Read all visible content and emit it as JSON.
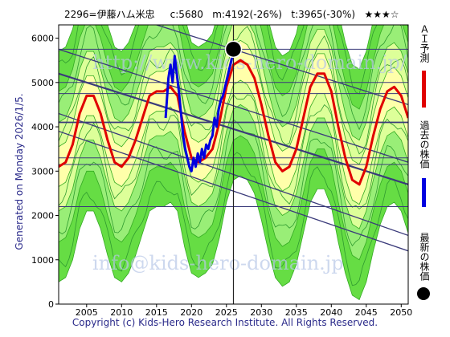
{
  "header": {
    "title": "2296=伊藤ハム米忠     c:5680   m:4192(-26%)   t:3965(-30%)   ★★★☆"
  },
  "side_text": "Generated on Monday 2026/1/5.",
  "footer": {
    "copyright": "Copyright (c) Kids-Hero Research Institute. All Rights Reserved."
  },
  "legend": [
    {
      "label": "ＡＩ予測",
      "color": "#e00000",
      "type": "bar"
    },
    {
      "label": "過去の株価",
      "color": "#0000e0",
      "type": "bar"
    },
    {
      "label": "最新の株価",
      "color": "#000000",
      "type": "dot"
    }
  ],
  "watermarks": [
    "http://www.kids-hero-domain.jp/",
    "info@kids-hero-domain.jp"
  ],
  "chart_data": {
    "type": "line",
    "xlim": [
      2001,
      2051
    ],
    "ylim": [
      0,
      6300
    ],
    "x_ticks": [
      2005,
      2010,
      2015,
      2020,
      2025,
      2030,
      2035,
      2040,
      2045,
      2050
    ],
    "y_ticks": [
      0,
      1000,
      2000,
      3000,
      4000,
      5000,
      6000
    ],
    "latest_point": {
      "x": 2026.0,
      "y": 5750
    },
    "series": [
      {
        "name": "過去の株価",
        "color": "#0000e0",
        "x": [
          2016.3,
          2016.7,
          2017.0,
          2017.3,
          2017.6,
          2017.9,
          2018.2,
          2018.5,
          2018.8,
          2019.1,
          2019.4,
          2019.7,
          2020.0,
          2020.3,
          2020.6,
          2020.9,
          2021.2,
          2021.5,
          2021.8,
          2022.1,
          2022.4,
          2022.7,
          2023.0,
          2023.3,
          2023.6,
          2023.9,
          2024.2,
          2024.5,
          2024.8,
          2025.1,
          2025.4,
          2025.7,
          2026.0
        ],
        "y": [
          4200,
          5100,
          5400,
          5000,
          5600,
          5200,
          4800,
          4300,
          3800,
          3500,
          3300,
          3100,
          3000,
          3300,
          3100,
          3400,
          3200,
          3500,
          3300,
          3600,
          3500,
          3700,
          3800,
          4200,
          4000,
          4400,
          4600,
          4700,
          4900,
          5100,
          5300,
          5500,
          5700
        ]
      },
      {
        "name": "ＡＩ予測",
        "color": "#e00000",
        "x": [
          2001,
          2002,
          2003,
          2004,
          2005,
          2006,
          2007,
          2008,
          2009,
          2010,
          2011,
          2012,
          2013,
          2014,
          2015,
          2016,
          2017,
          2018,
          2019,
          2020,
          2021,
          2022,
          2023,
          2024,
          2025,
          2026,
          2027,
          2028,
          2029,
          2030,
          2031,
          2032,
          2033,
          2034,
          2035,
          2036,
          2037,
          2038,
          2039,
          2040,
          2041,
          2042,
          2043,
          2044,
          2045,
          2046,
          2047,
          2048,
          2049,
          2050,
          2051
        ],
        "y": [
          3100,
          3200,
          3600,
          4300,
          4700,
          4700,
          4300,
          3700,
          3200,
          3100,
          3300,
          3700,
          4200,
          4700,
          4800,
          4800,
          4900,
          4700,
          3900,
          3300,
          3200,
          3300,
          3500,
          4100,
          4900,
          5400,
          5500,
          5400,
          5100,
          4500,
          3800,
          3200,
          3000,
          3100,
          3500,
          4200,
          4900,
          5200,
          5200,
          4800,
          4000,
          3300,
          2800,
          2700,
          3100,
          3800,
          4400,
          4800,
          4900,
          4700,
          4200
        ]
      }
    ],
    "trend_lines": [
      {
        "x": [
          2001,
          2051
        ],
        "y": [
          5750,
          3200
        ]
      },
      {
        "x": [
          2001,
          2051
        ],
        "y": [
          5200,
          2700
        ]
      },
      {
        "x": [
          2001,
          2051
        ],
        "y": [
          4300,
          1550
        ]
      },
      {
        "x": [
          2001,
          2051
        ],
        "y": [
          3900,
          1200
        ]
      },
      {
        "x": [
          2015,
          2051
        ],
        "y": [
          6300,
          4500
        ]
      }
    ],
    "reference_levels": [
      5750,
      5000,
      4750,
      4100,
      3300,
      3150,
      2200
    ],
    "current_year": 2026.0
  }
}
